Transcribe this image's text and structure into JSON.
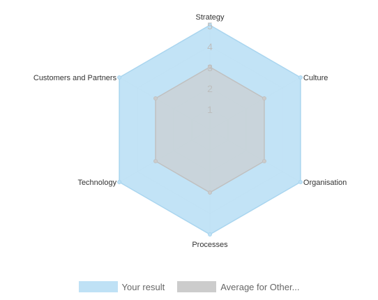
{
  "chart_data": {
    "type": "radar",
    "axes": [
      "Strategy",
      "Culture",
      "Organisation",
      "Processes",
      "Technology",
      "Customers and Partners"
    ],
    "scale": {
      "min": 0,
      "max": 5,
      "ticks": [
        "1",
        "2",
        "3",
        "4",
        "5"
      ]
    },
    "series": [
      {
        "name": "Your result",
        "values": [
          5,
          5,
          5,
          5,
          5,
          5
        ],
        "color": "#bfe1f5",
        "stroke": "#a9d5ef"
      },
      {
        "name": "Average for Other...",
        "values": [
          3,
          3,
          3,
          3,
          3,
          3
        ],
        "color": "#cccccc",
        "stroke": "#c0c0c0"
      }
    ],
    "grid": true,
    "legend": "bottom"
  }
}
